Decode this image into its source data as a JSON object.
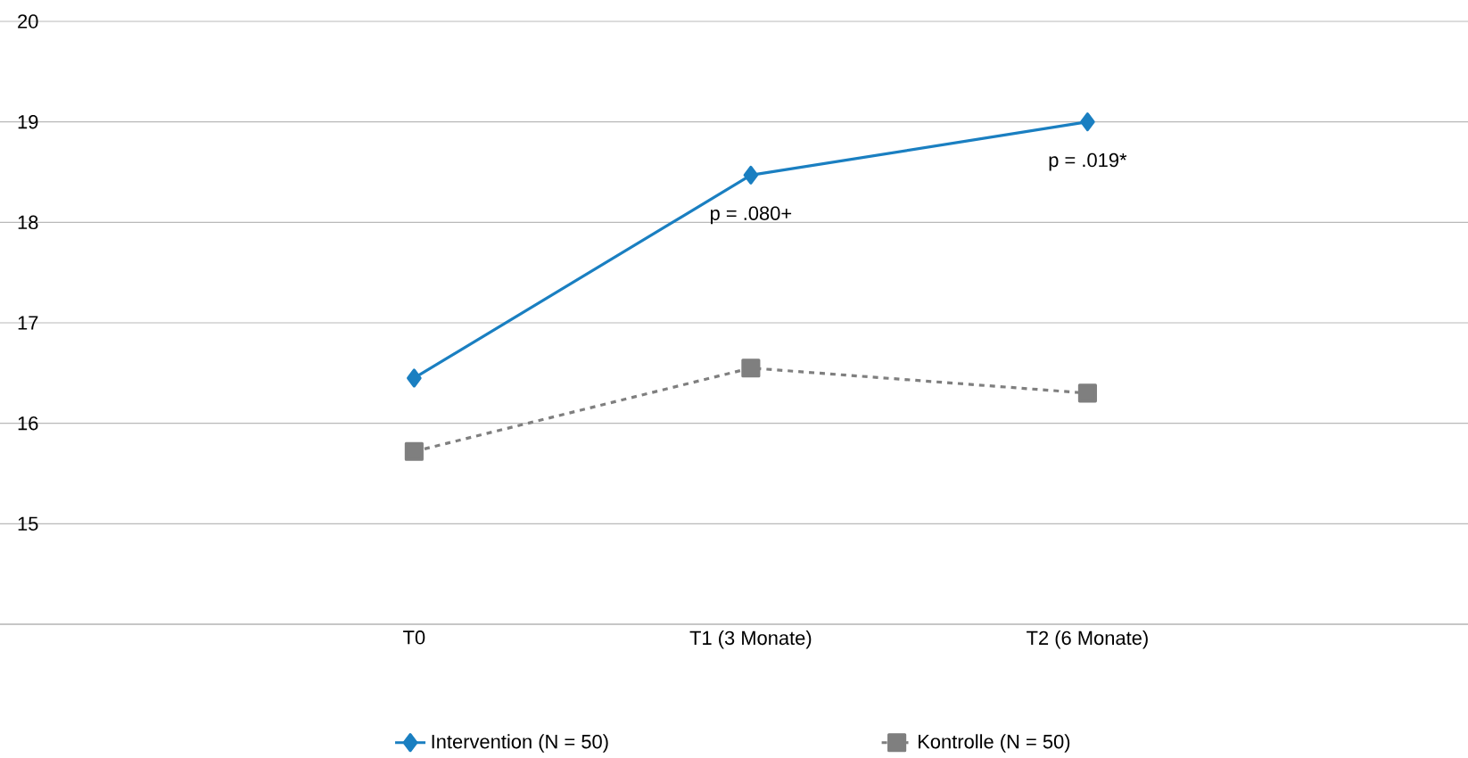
{
  "chart_data": {
    "type": "line",
    "categories": [
      "T0",
      "T1 (3 Monate)",
      "T2 (6 Monate)"
    ],
    "series": [
      {
        "name": "Intervention (N = 50)",
        "color": "#1a7fc1",
        "values": [
          16.45,
          18.47,
          19.0
        ],
        "marker": "diamond",
        "line_style": "solid"
      },
      {
        "name": "Kontrolle (N = 50)",
        "color": "#7f7f7f",
        "values": [
          15.72,
          16.55,
          16.3
        ],
        "marker": "square",
        "line_style": "dashed"
      }
    ],
    "ylim": [
      14,
      20
    ],
    "yticks": [
      {
        "value": 14,
        "label": null
      },
      15,
      16,
      17,
      18,
      19,
      20
    ],
    "grid": "y",
    "legend": "bottom",
    "annotations": [
      "p = .080+",
      "p = .019*"
    ]
  }
}
